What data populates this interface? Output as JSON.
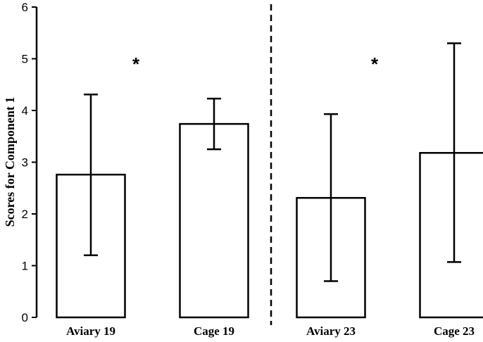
{
  "chart_data": {
    "type": "bar",
    "categories": [
      "Aviary 19",
      "Cage 19",
      "Aviary 23",
      "Cage 23"
    ],
    "values": [
      2.76,
      3.74,
      2.31,
      3.18
    ],
    "error_low": [
      1.2,
      3.25,
      0.7,
      1.07
    ],
    "error_high": [
      4.31,
      4.23,
      3.93,
      5.3
    ],
    "title": "",
    "xlabel": "",
    "ylabel": "Scores for Component 1",
    "ylim": [
      0,
      6
    ],
    "yticks": [
      "0",
      "1",
      "2",
      "3",
      "4",
      "5",
      "6"
    ],
    "grid": false,
    "annotations": [
      {
        "text": "*",
        "after_category": "Aviary 19",
        "y": 5.02
      },
      {
        "text": "*",
        "after_category": "Aviary 23",
        "y": 5.02
      }
    ],
    "divider": {
      "style": "dashed",
      "between": [
        "Cage 19",
        "Aviary 23"
      ]
    }
  }
}
